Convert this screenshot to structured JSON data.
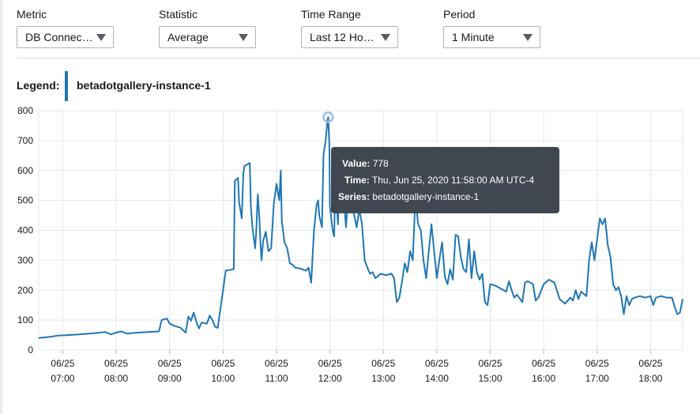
{
  "controls": {
    "metric": {
      "label": "Metric",
      "value": "DB Connec…"
    },
    "statistic": {
      "label": "Statistic",
      "value": "Average"
    },
    "time_range": {
      "label": "Time Range",
      "value": "Last 12 Ho…"
    },
    "period": {
      "label": "Period",
      "value": "1 Minute"
    }
  },
  "legend": {
    "title": "Legend:",
    "series_name": "betadotgallery-instance-1",
    "series_color": "#1f77b4"
  },
  "tooltip": {
    "value_label": "Value:",
    "value": "778",
    "time_label": "Time:",
    "time": "Thu, Jun 25, 2020 11:58:00 AM UTC-4",
    "series_label": "Series:",
    "series": "betadotgallery-instance-1"
  },
  "chart_data": {
    "type": "line",
    "ylim": [
      0,
      800
    ],
    "yticks": [
      0,
      100,
      200,
      300,
      400,
      500,
      600,
      700,
      800
    ],
    "xlim": [
      6.55,
      18.6
    ],
    "x_ticks": [
      {
        "x": 7,
        "date": "06/25",
        "time": "07:00"
      },
      {
        "x": 8,
        "date": "06/25",
        "time": "08:00"
      },
      {
        "x": 9,
        "date": "06/25",
        "time": "09:00"
      },
      {
        "x": 10,
        "date": "06/25",
        "time": "10:00"
      },
      {
        "x": 11,
        "date": "06/25",
        "time": "11:00"
      },
      {
        "x": 12,
        "date": "06/25",
        "time": "12:00"
      },
      {
        "x": 13,
        "date": "06/25",
        "time": "13:00"
      },
      {
        "x": 14,
        "date": "06/25",
        "time": "14:00"
      },
      {
        "x": 15,
        "date": "06/25",
        "time": "15:00"
      },
      {
        "x": 16,
        "date": "06/25",
        "time": "16:00"
      },
      {
        "x": 17,
        "date": "06/25",
        "time": "17:00"
      },
      {
        "x": 18,
        "date": "06/25",
        "time": "18:00"
      }
    ],
    "grid": true,
    "highlight": {
      "x": 11.967,
      "y": 778
    },
    "series": [
      {
        "name": "betadotgallery-instance-1",
        "points": [
          [
            6.55,
            40
          ],
          [
            6.8,
            45
          ],
          [
            6.9,
            48
          ],
          [
            7.1,
            50
          ],
          [
            7.3,
            52
          ],
          [
            7.5,
            55
          ],
          [
            7.8,
            60
          ],
          [
            7.9,
            52
          ],
          [
            8.0,
            58
          ],
          [
            8.1,
            62
          ],
          [
            8.2,
            55
          ],
          [
            8.4,
            58
          ],
          [
            8.6,
            60
          ],
          [
            8.8,
            62
          ],
          [
            8.85,
            100
          ],
          [
            8.95,
            105
          ],
          [
            9.0,
            88
          ],
          [
            9.1,
            80
          ],
          [
            9.2,
            75
          ],
          [
            9.3,
            58
          ],
          [
            9.35,
            112
          ],
          [
            9.4,
            98
          ],
          [
            9.45,
            125
          ],
          [
            9.5,
            95
          ],
          [
            9.55,
            72
          ],
          [
            9.6,
            92
          ],
          [
            9.7,
            88
          ],
          [
            9.75,
            115
          ],
          [
            9.8,
            100
          ],
          [
            9.85,
            78
          ],
          [
            9.9,
            74
          ],
          [
            10.0,
            200
          ],
          [
            10.05,
            265
          ],
          [
            10.2,
            270
          ],
          [
            10.22,
            565
          ],
          [
            10.28,
            575
          ],
          [
            10.3,
            495
          ],
          [
            10.35,
            440
          ],
          [
            10.38,
            590
          ],
          [
            10.4,
            615
          ],
          [
            10.45,
            620
          ],
          [
            10.5,
            625
          ],
          [
            10.52,
            480
          ],
          [
            10.55,
            410
          ],
          [
            10.6,
            340
          ],
          [
            10.62,
            395
          ],
          [
            10.65,
            520
          ],
          [
            10.68,
            440
          ],
          [
            10.7,
            355
          ],
          [
            10.72,
            300
          ],
          [
            10.75,
            365
          ],
          [
            10.8,
            395
          ],
          [
            10.85,
            330
          ],
          [
            10.9,
            340
          ],
          [
            10.95,
            490
          ],
          [
            11.0,
            555
          ],
          [
            11.05,
            500
          ],
          [
            11.08,
            600
          ],
          [
            11.1,
            430
          ],
          [
            11.15,
            360
          ],
          [
            11.2,
            340
          ],
          [
            11.25,
            290
          ],
          [
            11.3,
            285
          ],
          [
            11.35,
            275
          ],
          [
            11.45,
            272
          ],
          [
            11.55,
            265
          ],
          [
            11.6,
            275
          ],
          [
            11.65,
            225
          ],
          [
            11.7,
            395
          ],
          [
            11.75,
            485
          ],
          [
            11.78,
            500
          ],
          [
            11.8,
            450
          ],
          [
            11.85,
            410
          ],
          [
            11.88,
            655
          ],
          [
            11.92,
            700
          ],
          [
            11.95,
            760
          ],
          [
            11.967,
            778
          ],
          [
            11.99,
            680
          ],
          [
            12.0,
            480
          ],
          [
            12.05,
            400
          ],
          [
            12.08,
            380
          ],
          [
            12.1,
            560
          ],
          [
            12.15,
            420
          ],
          [
            12.2,
            670
          ],
          [
            12.25,
            560
          ],
          [
            12.28,
            460
          ],
          [
            12.3,
            410
          ],
          [
            12.35,
            540
          ],
          [
            12.4,
            500
          ],
          [
            12.45,
            455
          ],
          [
            12.5,
            410
          ],
          [
            12.55,
            470
          ],
          [
            12.6,
            420
          ],
          [
            12.65,
            300
          ],
          [
            12.7,
            275
          ],
          [
            12.75,
            255
          ],
          [
            12.8,
            260
          ],
          [
            12.85,
            240
          ],
          [
            12.95,
            255
          ],
          [
            13.05,
            250
          ],
          [
            13.15,
            255
          ],
          [
            13.2,
            240
          ],
          [
            13.25,
            160
          ],
          [
            13.3,
            175
          ],
          [
            13.35,
            230
          ],
          [
            13.4,
            290
          ],
          [
            13.45,
            260
          ],
          [
            13.5,
            330
          ],
          [
            13.55,
            300
          ],
          [
            13.6,
            510
          ],
          [
            13.65,
            420
          ],
          [
            13.7,
            400
          ],
          [
            13.75,
            300
          ],
          [
            13.8,
            240
          ],
          [
            13.85,
            330
          ],
          [
            13.9,
            420
          ],
          [
            13.95,
            330
          ],
          [
            14.0,
            240
          ],
          [
            14.05,
            305
          ],
          [
            14.1,
            360
          ],
          [
            14.15,
            245
          ],
          [
            14.2,
            220
          ],
          [
            14.25,
            270
          ],
          [
            14.3,
            235
          ],
          [
            14.35,
            385
          ],
          [
            14.4,
            380
          ],
          [
            14.45,
            310
          ],
          [
            14.5,
            270
          ],
          [
            14.55,
            260
          ],
          [
            14.6,
            370
          ],
          [
            14.65,
            240
          ],
          [
            14.7,
            330
          ],
          [
            14.75,
            260
          ],
          [
            14.8,
            235
          ],
          [
            14.85,
            255
          ],
          [
            14.9,
            160
          ],
          [
            14.95,
            150
          ],
          [
            15.0,
            220
          ],
          [
            15.1,
            215
          ],
          [
            15.2,
            205
          ],
          [
            15.3,
            195
          ],
          [
            15.35,
            230
          ],
          [
            15.4,
            200
          ],
          [
            15.45,
            175
          ],
          [
            15.5,
            185
          ],
          [
            15.6,
            160
          ],
          [
            15.65,
            225
          ],
          [
            15.7,
            230
          ],
          [
            15.8,
            220
          ],
          [
            15.85,
            165
          ],
          [
            15.9,
            175
          ],
          [
            16.0,
            220
          ],
          [
            16.1,
            235
          ],
          [
            16.2,
            225
          ],
          [
            16.3,
            170
          ],
          [
            16.4,
            155
          ],
          [
            16.5,
            175
          ],
          [
            16.55,
            165
          ],
          [
            16.6,
            200
          ],
          [
            16.65,
            170
          ],
          [
            16.7,
            195
          ],
          [
            16.8,
            180
          ],
          [
            16.85,
            300
          ],
          [
            16.9,
            360
          ],
          [
            16.95,
            300
          ],
          [
            17.0,
            370
          ],
          [
            17.05,
            440
          ],
          [
            17.1,
            420
          ],
          [
            17.15,
            440
          ],
          [
            17.2,
            350
          ],
          [
            17.25,
            310
          ],
          [
            17.3,
            220
          ],
          [
            17.35,
            200
          ],
          [
            17.4,
            210
          ],
          [
            17.45,
            180
          ],
          [
            17.5,
            120
          ],
          [
            17.55,
            180
          ],
          [
            17.6,
            150
          ],
          [
            17.65,
            170
          ],
          [
            17.7,
            175
          ],
          [
            17.8,
            180
          ],
          [
            17.9,
            175
          ],
          [
            18.0,
            180
          ],
          [
            18.05,
            150
          ],
          [
            18.1,
            175
          ],
          [
            18.2,
            180
          ],
          [
            18.3,
            175
          ],
          [
            18.4,
            175
          ],
          [
            18.45,
            145
          ],
          [
            18.5,
            120
          ],
          [
            18.55,
            125
          ],
          [
            18.6,
            170
          ]
        ]
      }
    ]
  }
}
